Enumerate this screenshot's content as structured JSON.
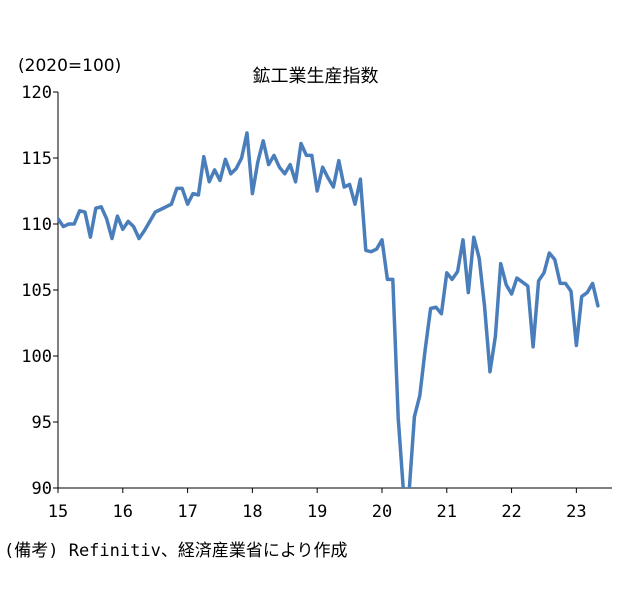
{
  "chart_data": {
    "type": "line",
    "title": "鉱工業生産指数",
    "unit_label": "(2020=100)",
    "source_note": "(備考) Refinitiv、経済産業省により作成",
    "ylim": [
      90,
      120
    ],
    "yticks": [
      90,
      95,
      100,
      105,
      110,
      115,
      120
    ],
    "xlim": [
      2015.0,
      2023.55
    ],
    "xticks": [
      2015,
      2016,
      2017,
      2018,
      2019,
      2020,
      2021,
      2022,
      2023
    ],
    "xtick_labels": [
      "15",
      "16",
      "17",
      "18",
      "19",
      "20",
      "21",
      "22",
      "23"
    ],
    "grid": false,
    "line_color": "#4a7ebb",
    "series": [
      {
        "name": "",
        "x": [
          2015.0,
          2015.083,
          2015.167,
          2015.25,
          2015.333,
          2015.417,
          2015.5,
          2015.583,
          2015.667,
          2015.75,
          2015.833,
          2015.917,
          2016.0,
          2016.083,
          2016.167,
          2016.25,
          2016.333,
          2016.417,
          2016.5,
          2016.583,
          2016.667,
          2016.75,
          2016.833,
          2016.917,
          2017.0,
          2017.083,
          2017.167,
          2017.25,
          2017.333,
          2017.417,
          2017.5,
          2017.583,
          2017.667,
          2017.75,
          2017.833,
          2017.917,
          2018.0,
          2018.083,
          2018.167,
          2018.25,
          2018.333,
          2018.417,
          2018.5,
          2018.583,
          2018.667,
          2018.75,
          2018.833,
          2018.917,
          2019.0,
          2019.083,
          2019.167,
          2019.25,
          2019.333,
          2019.417,
          2019.5,
          2019.583,
          2019.667,
          2019.75,
          2019.833,
          2019.917,
          2020.0,
          2020.083,
          2020.167,
          2020.25,
          2020.333,
          2020.417,
          2020.5,
          2020.583,
          2020.667,
          2020.75,
          2020.833,
          2020.917,
          2021.0,
          2021.083,
          2021.167,
          2021.25,
          2021.333,
          2021.417,
          2021.5,
          2021.583,
          2021.667,
          2021.75,
          2021.833,
          2021.917,
          2022.0,
          2022.083,
          2022.167,
          2022.25,
          2022.333,
          2022.417,
          2022.5,
          2022.583,
          2022.667,
          2022.75,
          2022.833,
          2022.917,
          2023.0,
          2023.083,
          2023.167,
          2023.25,
          2023.333
        ],
        "values": [
          110.4,
          109.8,
          110.0,
          110.0,
          111.0,
          110.9,
          109.0,
          111.2,
          111.3,
          110.4,
          108.9,
          110.6,
          109.6,
          110.2,
          109.8,
          108.9,
          109.5,
          110.2,
          110.9,
          111.1,
          111.3,
          111.5,
          112.7,
          112.7,
          111.5,
          112.3,
          112.2,
          115.1,
          113.2,
          114.1,
          113.3,
          114.9,
          113.8,
          114.2,
          115.0,
          116.9,
          112.3,
          114.7,
          116.3,
          114.5,
          115.2,
          114.3,
          113.8,
          114.5,
          113.2,
          116.1,
          115.2,
          115.2,
          112.5,
          114.3,
          113.5,
          112.8,
          114.8,
          112.8,
          113.0,
          111.5,
          113.4,
          108.0,
          107.9,
          108.1,
          108.8,
          105.8,
          105.8,
          95.3,
          89.6,
          89.6,
          95.4,
          97.0,
          100.5,
          103.6,
          103.7,
          103.2,
          106.3,
          105.8,
          106.4,
          108.8,
          104.8,
          109.0,
          107.4,
          103.8,
          98.8,
          101.5,
          107.0,
          105.4,
          104.7,
          105.9,
          105.6,
          105.3,
          100.7,
          105.7,
          106.3,
          107.8,
          107.3,
          105.5,
          105.5,
          104.9,
          100.8,
          104.5,
          104.8,
          105.5,
          103.8
        ]
      }
    ]
  }
}
